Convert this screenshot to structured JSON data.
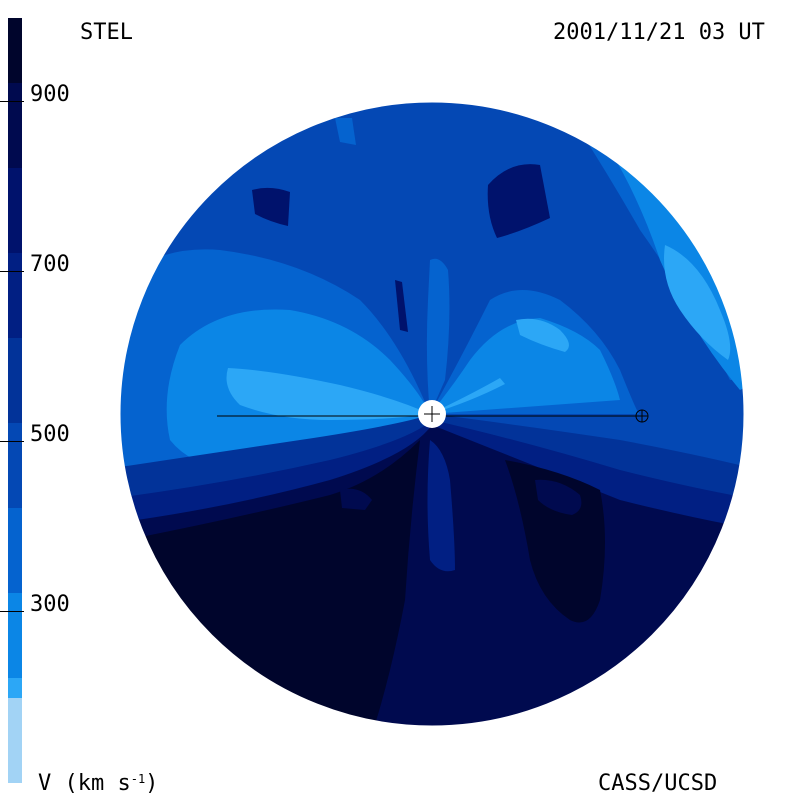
{
  "header": {
    "left": "STEL",
    "right": "2001/11/21 03 UT"
  },
  "footer": {
    "left_prefix": "V (km s",
    "left_sup": "-1",
    "left_suffix": ")",
    "right": "CASS/UCSD"
  },
  "colorbar": {
    "ticks": [
      "900",
      "700",
      "500",
      "300"
    ],
    "colors": [
      "#a2d3f5",
      "#2ca7f6",
      "#0b86e6",
      "#0563cf",
      "#0448b4",
      "#023399",
      "#011f83",
      "#00126c",
      "#000a4f",
      "#00052c"
    ]
  },
  "map": {
    "sun_marker": "sun",
    "earth_marker": "earth"
  }
}
